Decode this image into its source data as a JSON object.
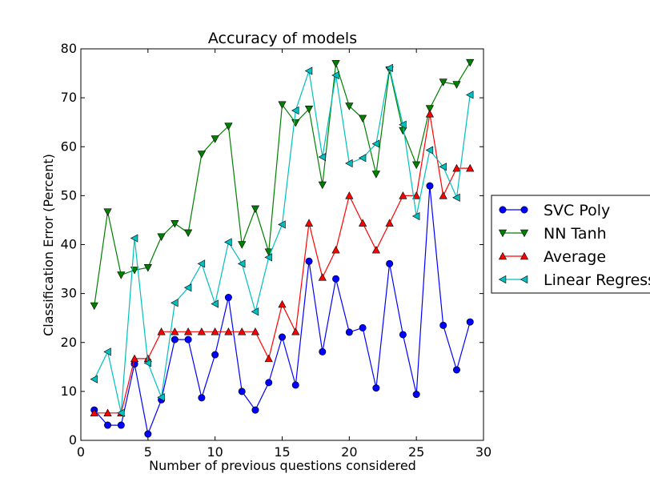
{
  "chart_data": {
    "type": "line",
    "title": "Accuracy of models",
    "xlabel": "Number of previous questions considered",
    "ylabel": "Classification Error (Percent)",
    "xlim": [
      0,
      30
    ],
    "ylim": [
      0,
      80
    ],
    "xticks": [
      0,
      5,
      10,
      15,
      20,
      25,
      30
    ],
    "yticks": [
      0,
      10,
      20,
      30,
      40,
      50,
      60,
      70,
      80
    ],
    "grid": false,
    "legend_position": "outside-right",
    "x": [
      1,
      2,
      3,
      4,
      5,
      6,
      7,
      8,
      9,
      10,
      11,
      12,
      13,
      14,
      15,
      16,
      17,
      18,
      19,
      20,
      21,
      22,
      23,
      24,
      25,
      26,
      27,
      28,
      29
    ],
    "series": [
      {
        "name": "SVC Poly",
        "color": "#0000ff",
        "marker": "circle",
        "values": [
          6.2,
          3.1,
          3.1,
          15.6,
          1.3,
          8.3,
          20.6,
          20.6,
          8.7,
          17.5,
          29.2,
          10.0,
          6.2,
          11.8,
          21.1,
          11.3,
          36.6,
          18.1,
          33.0,
          22.1,
          23.0,
          10.7,
          36.1,
          21.6,
          9.4,
          52.0,
          23.5,
          14.4,
          24.2
        ]
      },
      {
        "name": "NN Tanh",
        "color": "#008000",
        "marker": "triangle-down",
        "values": [
          27.5,
          46.7,
          33.8,
          34.8,
          35.3,
          41.6,
          44.3,
          42.4,
          58.5,
          61.6,
          64.2,
          40.0,
          47.3,
          38.5,
          68.6,
          64.9,
          67.7,
          52.2,
          77.0,
          68.3,
          65.8,
          54.4,
          75.7,
          63.3,
          56.3,
          67.8,
          73.2,
          72.7,
          77.2
        ]
      },
      {
        "name": "Average",
        "color": "#ff0000",
        "marker": "triangle-up",
        "values": [
          5.6,
          5.6,
          5.6,
          16.7,
          16.7,
          22.2,
          22.2,
          22.2,
          22.2,
          22.2,
          22.2,
          22.2,
          22.2,
          16.7,
          27.8,
          22.2,
          44.4,
          33.3,
          38.9,
          50.0,
          44.4,
          38.9,
          44.4,
          50.0,
          50.0,
          66.7,
          50.0,
          55.6,
          55.6
        ]
      },
      {
        "name": "Linear Regression",
        "color": "#00bfbf",
        "marker": "triangle-left",
        "values": [
          12.5,
          18.1,
          5.6,
          41.3,
          15.8,
          8.8,
          28.1,
          31.2,
          36.1,
          27.9,
          40.5,
          36.1,
          26.3,
          37.4,
          44.1,
          67.4,
          75.5,
          57.9,
          74.6,
          56.6,
          57.7,
          60.6,
          76.1,
          64.5,
          45.8,
          59.3,
          55.9,
          49.6,
          70.6
        ]
      }
    ]
  }
}
